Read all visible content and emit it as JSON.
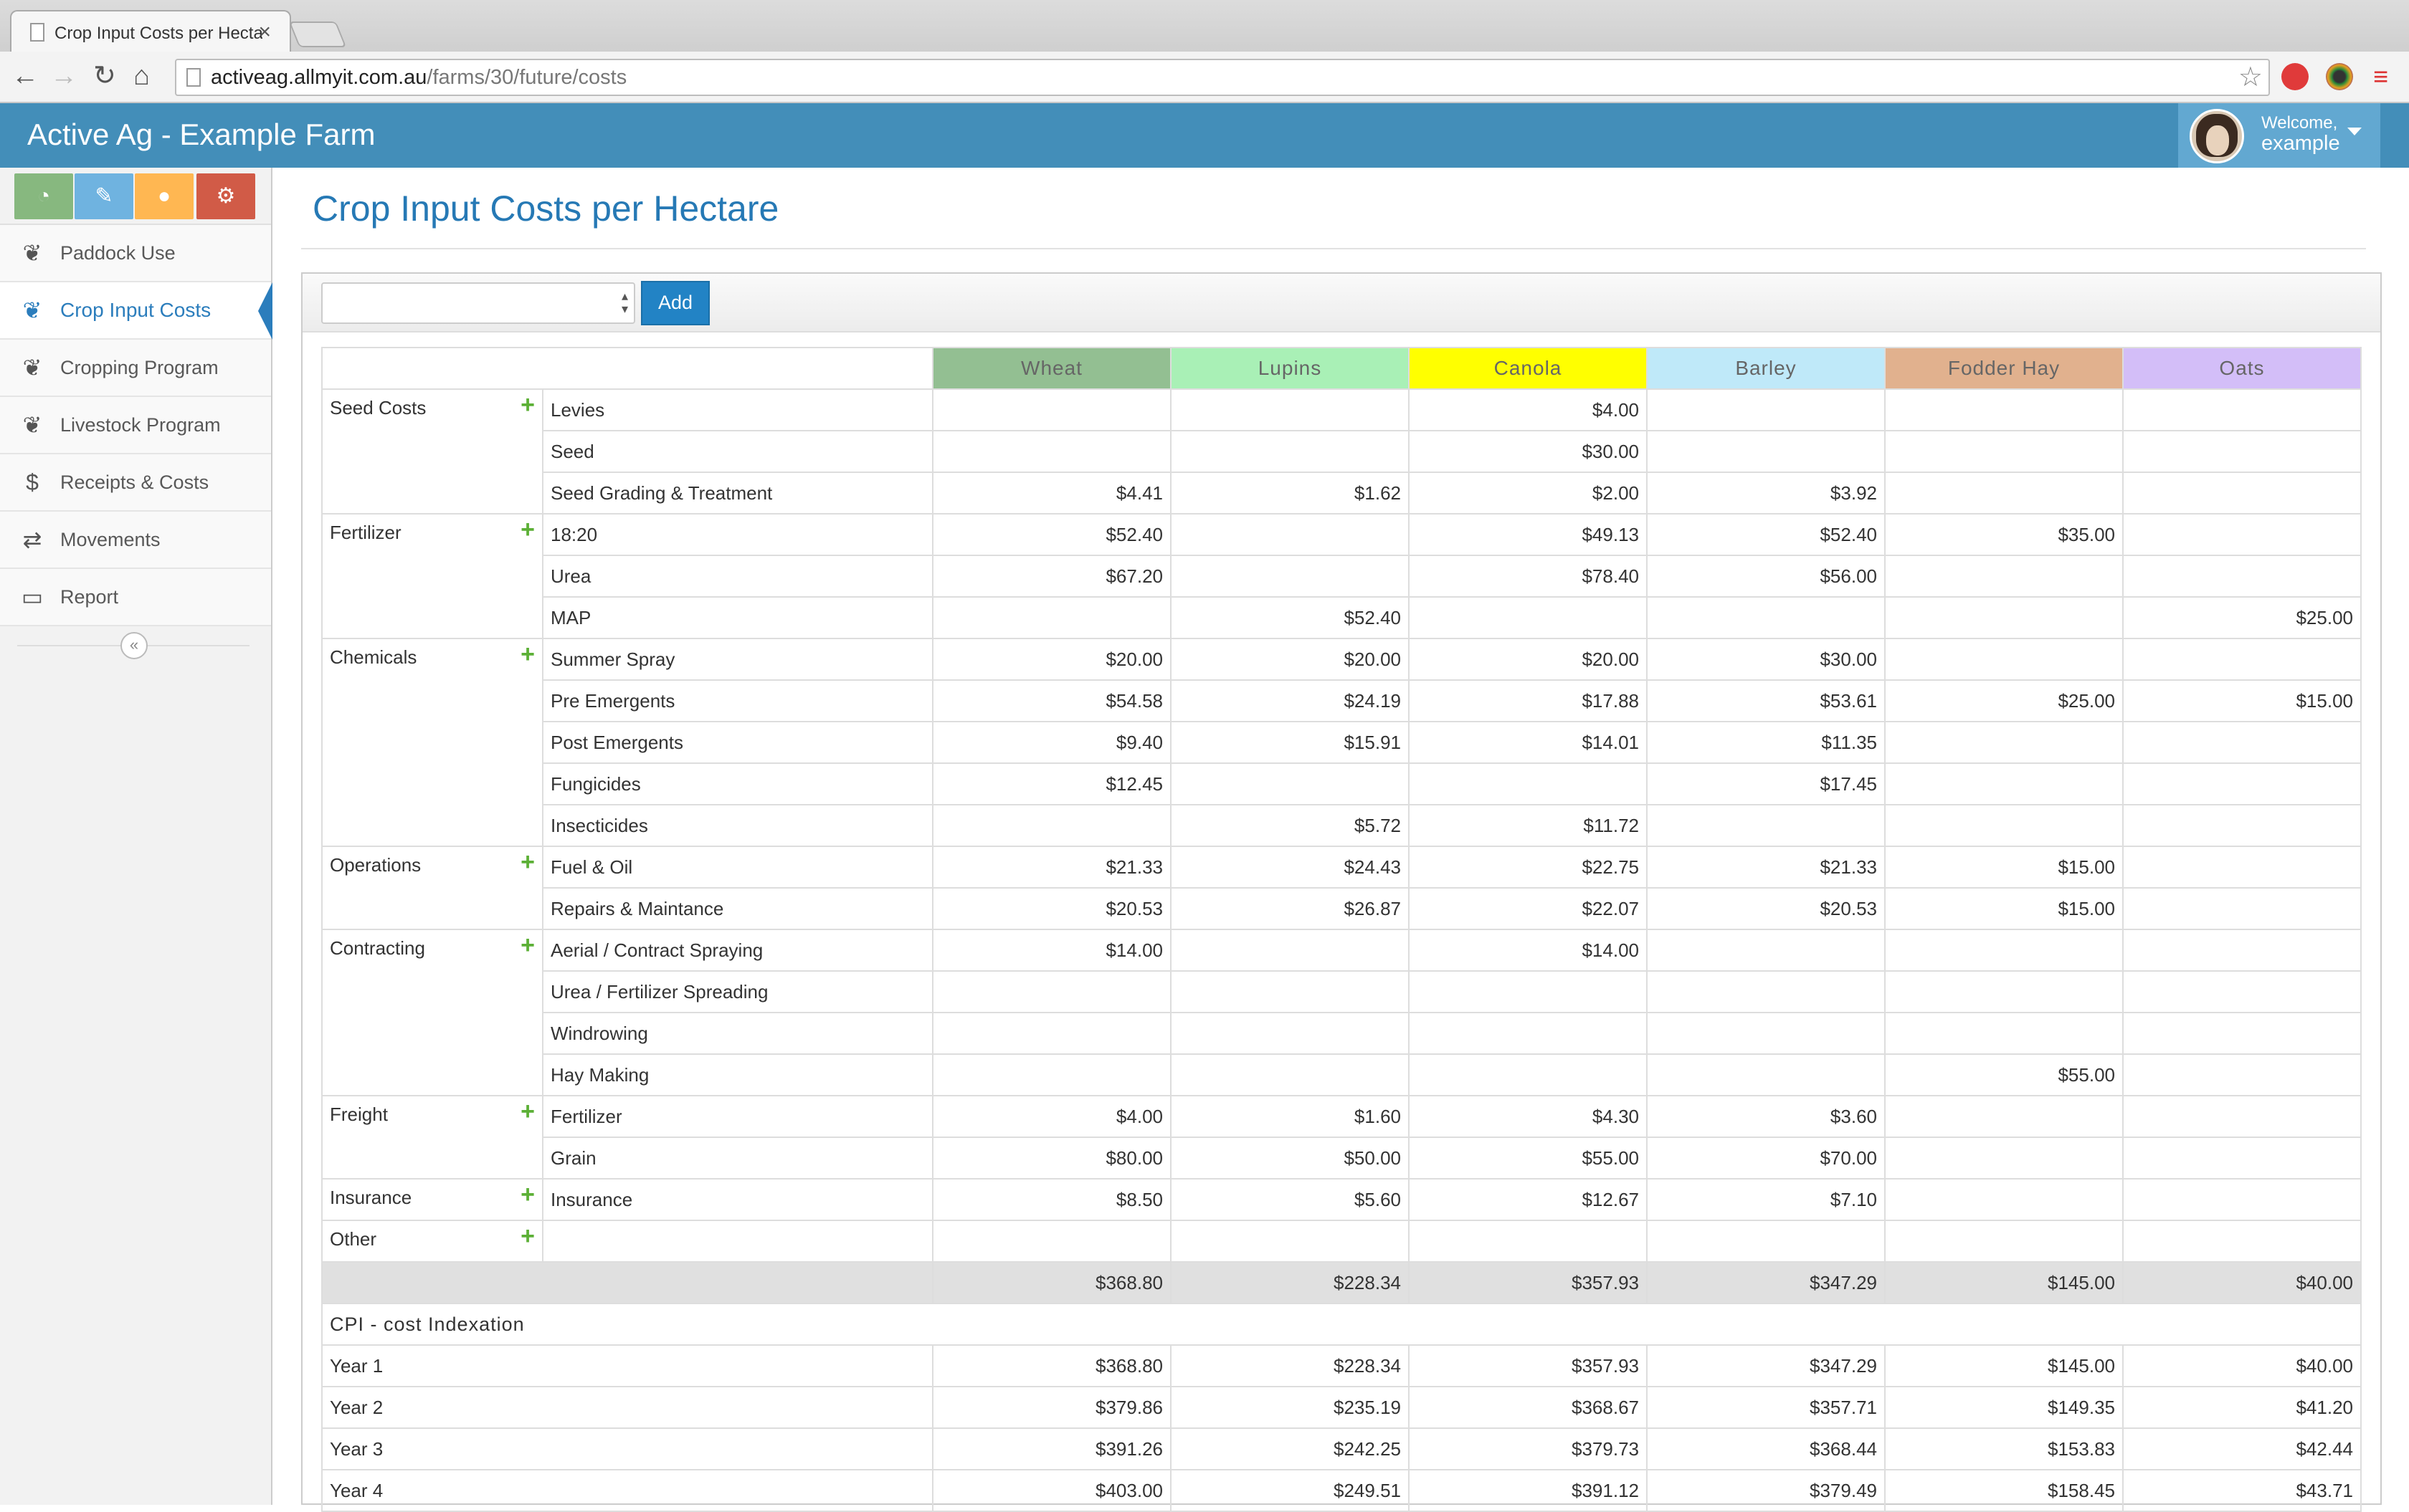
{
  "browser": {
    "tab_title": "Crop Input Costs per Hecta",
    "url_host": "activeag.allmyit.com.au",
    "url_path": "/farms/30/future/costs"
  },
  "header": {
    "brand": "Active Ag - Example Farm",
    "welcome": "Welcome,",
    "username": "example"
  },
  "sidebar": {
    "items": [
      {
        "label": "Paddock Use",
        "icon": "leaf-icon"
      },
      {
        "label": "Crop Input Costs",
        "icon": "leaf-icon"
      },
      {
        "label": "Cropping Program",
        "icon": "leaf-icon"
      },
      {
        "label": "Livestock Program",
        "icon": "leaf-icon"
      },
      {
        "label": "Receipts & Costs",
        "icon": "dollar-icon"
      },
      {
        "label": "Movements",
        "icon": "exchange-icon"
      },
      {
        "label": "Report",
        "icon": "desktop-icon"
      }
    ],
    "shortcut_colors": [
      "#87b87f",
      "#6fb3e0",
      "#ffb752",
      "#d15b47"
    ]
  },
  "main": {
    "title": "Crop Input Costs per Hectare",
    "add_label": "Add",
    "crops": [
      {
        "name": "Wheat",
        "color": "#93bf92"
      },
      {
        "name": "Lupins",
        "color": "#a9f0b6"
      },
      {
        "name": "Canola",
        "color": "#ffff00"
      },
      {
        "name": "Barley",
        "color": "#bfe9f9"
      },
      {
        "name": "Fodder Hay",
        "color": "#e1b18e"
      },
      {
        "name": "Oats",
        "color": "#d3bef8"
      }
    ],
    "categories": [
      {
        "name": "Seed Costs",
        "items": [
          {
            "label": "Levies",
            "values": [
              "",
              "",
              "$4.00",
              "",
              "",
              ""
            ]
          },
          {
            "label": "Seed",
            "values": [
              "",
              "",
              "$30.00",
              "",
              "",
              ""
            ]
          },
          {
            "label": "Seed Grading & Treatment",
            "values": [
              "$4.41",
              "$1.62",
              "$2.00",
              "$3.92",
              "",
              ""
            ]
          }
        ]
      },
      {
        "name": "Fertilizer",
        "items": [
          {
            "label": "18:20",
            "values": [
              "$52.40",
              "",
              "$49.13",
              "$52.40",
              "$35.00",
              ""
            ]
          },
          {
            "label": "Urea",
            "values": [
              "$67.20",
              "",
              "$78.40",
              "$56.00",
              "",
              ""
            ]
          },
          {
            "label": "MAP",
            "values": [
              "",
              "$52.40",
              "",
              "",
              "",
              "$25.00"
            ]
          }
        ]
      },
      {
        "name": "Chemicals",
        "items": [
          {
            "label": "Summer Spray",
            "values": [
              "$20.00",
              "$20.00",
              "$20.00",
              "$30.00",
              "",
              ""
            ]
          },
          {
            "label": "Pre Emergents",
            "values": [
              "$54.58",
              "$24.19",
              "$17.88",
              "$53.61",
              "$25.00",
              "$15.00"
            ]
          },
          {
            "label": "Post Emergents",
            "values": [
              "$9.40",
              "$15.91",
              "$14.01",
              "$11.35",
              "",
              ""
            ]
          },
          {
            "label": "Fungicides",
            "values": [
              "$12.45",
              "",
              "",
              "$17.45",
              "",
              ""
            ]
          },
          {
            "label": "Insecticides",
            "values": [
              "",
              "$5.72",
              "$11.72",
              "",
              "",
              ""
            ]
          }
        ]
      },
      {
        "name": "Operations",
        "items": [
          {
            "label": "Fuel & Oil",
            "values": [
              "$21.33",
              "$24.43",
              "$22.75",
              "$21.33",
              "$15.00",
              ""
            ]
          },
          {
            "label": "Repairs & Maintance",
            "values": [
              "$20.53",
              "$26.87",
              "$22.07",
              "$20.53",
              "$15.00",
              ""
            ]
          }
        ]
      },
      {
        "name": "Contracting",
        "items": [
          {
            "label": "Aerial / Contract Spraying",
            "values": [
              "$14.00",
              "",
              "$14.00",
              "",
              "",
              ""
            ]
          },
          {
            "label": "Urea / Fertilizer Spreading",
            "values": [
              "",
              "",
              "",
              "",
              "",
              ""
            ]
          },
          {
            "label": "Windrowing",
            "values": [
              "",
              "",
              "",
              "",
              "",
              ""
            ]
          },
          {
            "label": "Hay Making",
            "values": [
              "",
              "",
              "",
              "",
              "$55.00",
              ""
            ]
          }
        ]
      },
      {
        "name": "Freight",
        "items": [
          {
            "label": "Fertilizer",
            "values": [
              "$4.00",
              "$1.60",
              "$4.30",
              "$3.60",
              "",
              ""
            ]
          },
          {
            "label": "Grain",
            "values": [
              "$80.00",
              "$50.00",
              "$55.00",
              "$70.00",
              "",
              ""
            ]
          }
        ]
      },
      {
        "name": "Insurance",
        "items": [
          {
            "label": "Insurance",
            "values": [
              "$8.50",
              "$5.60",
              "$12.67",
              "$7.10",
              "",
              ""
            ]
          }
        ]
      },
      {
        "name": "Other",
        "items": [
          {
            "label": "",
            "values": [
              "",
              "",
              "",
              "",
              "",
              ""
            ]
          }
        ]
      }
    ],
    "totals": [
      "$368.80",
      "$228.34",
      "$357.93",
      "$347.29",
      "$145.00",
      "$40.00"
    ],
    "cpi_title": "CPI - cost Indexation",
    "cpi_rows": [
      {
        "label": "Year 1",
        "values": [
          "$368.80",
          "$228.34",
          "$357.93",
          "$347.29",
          "$145.00",
          "$40.00"
        ]
      },
      {
        "label": "Year 2",
        "values": [
          "$379.86",
          "$235.19",
          "$368.67",
          "$357.71",
          "$149.35",
          "$41.20"
        ]
      },
      {
        "label": "Year 3",
        "values": [
          "$391.26",
          "$242.25",
          "$379.73",
          "$368.44",
          "$153.83",
          "$42.44"
        ]
      },
      {
        "label": "Year 4",
        "values": [
          "$403.00",
          "$249.51",
          "$391.12",
          "$379.49",
          "$158.45",
          "$43.71"
        ]
      }
    ]
  }
}
